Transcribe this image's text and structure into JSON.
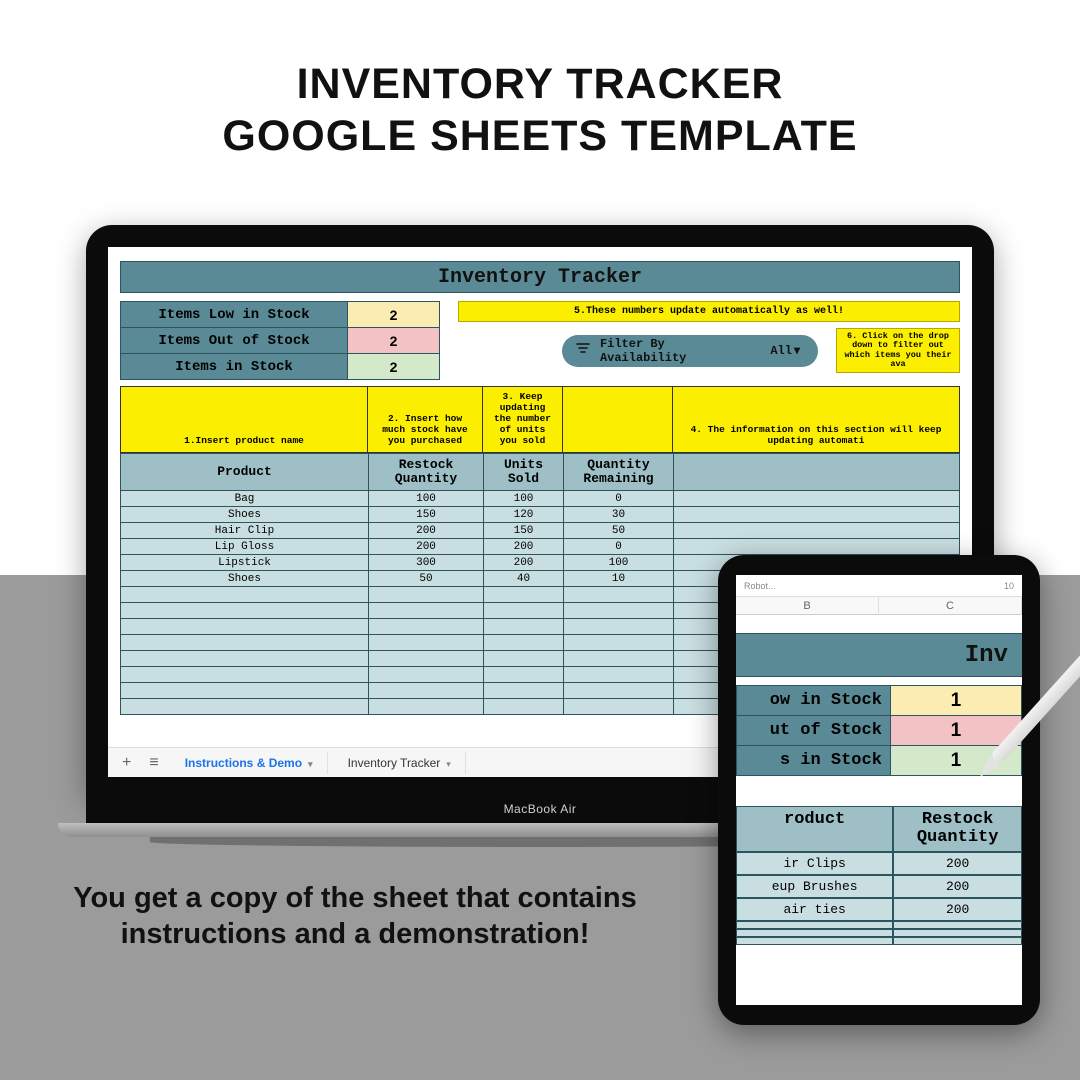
{
  "colors": {
    "teal_band": "#5a8a96",
    "header_cell": "#9ebfc6",
    "data_cell": "#c9dee1",
    "accent_yellow": "#fcee00",
    "low_bg": "#fbecb2",
    "out_bg": "#f2c2c4",
    "in_bg": "#d3e9c9",
    "gray_band": "#9b9b9b"
  },
  "headline": {
    "line1": "INVENTORY TRACKER",
    "line2": "GOOGLE SHEETS TEMPLATE"
  },
  "tagline": "You get a copy of the sheet that contains instructions and a demonstration!",
  "laptop": {
    "brand": "MacBook Air",
    "sheet_title": "Inventory Tracker",
    "summary": {
      "rows": [
        {
          "label": "Items Low in Stock",
          "value": "2",
          "bg": "#fbecb2"
        },
        {
          "label": "Items Out of Stock",
          "value": "2",
          "bg": "#f2c2c4"
        },
        {
          "label": "Items in Stock",
          "value": "2",
          "bg": "#d3e9c9"
        }
      ]
    },
    "notes": {
      "n5": "5.These numbers update automatically as well!",
      "n6": "6. Click on the drop down to filter out which items you their ava"
    },
    "filter": {
      "label": "Filter By Availability",
      "value": "All"
    },
    "instructions": {
      "c1": "1.Insert product name",
      "c2": "2. Insert how much stock have you purchased",
      "c3": "3. Keep updating the number of units you sold",
      "c4": "",
      "c5": "4. The information on this section will keep updating automati"
    },
    "columns": [
      "Product",
      "Restock Quantity",
      "Units Sold",
      "Quantity Remaining"
    ],
    "col_widths": [
      "248px",
      "115px",
      "80px",
      "110px",
      "1fr"
    ],
    "rows": [
      [
        "Bag",
        "100",
        "100",
        "0"
      ],
      [
        "Shoes",
        "150",
        "120",
        "30"
      ],
      [
        "Hair Clip",
        "200",
        "150",
        "50"
      ],
      [
        "Lip Gloss",
        "200",
        "200",
        "0"
      ],
      [
        "Lipstick",
        "300",
        "200",
        "100"
      ],
      [
        "Shoes",
        "50",
        "40",
        "10"
      ]
    ],
    "empty_rows": 8,
    "tabs": {
      "active": "Instructions & Demo",
      "other": "Inventory Tracker"
    }
  },
  "tablet": {
    "toolbar_hint": "Robot...",
    "toolbar_num": "10",
    "col_letters": [
      "B",
      "C"
    ],
    "band_text": "Inv",
    "summary": [
      {
        "label": "ow in Stock",
        "value": "1",
        "bg": "#fbecb2"
      },
      {
        "label": "ut of Stock",
        "value": "1",
        "bg": "#f2c2c4"
      },
      {
        "label": "s in Stock",
        "value": "1",
        "bg": "#d3e9c9"
      }
    ],
    "headers": [
      "roduct",
      "Restock Quantity"
    ],
    "rows": [
      [
        "ir Clips",
        "200"
      ],
      [
        "eup Brushes",
        "200"
      ],
      [
        "air ties",
        "200"
      ]
    ],
    "empty_rows": 3
  }
}
